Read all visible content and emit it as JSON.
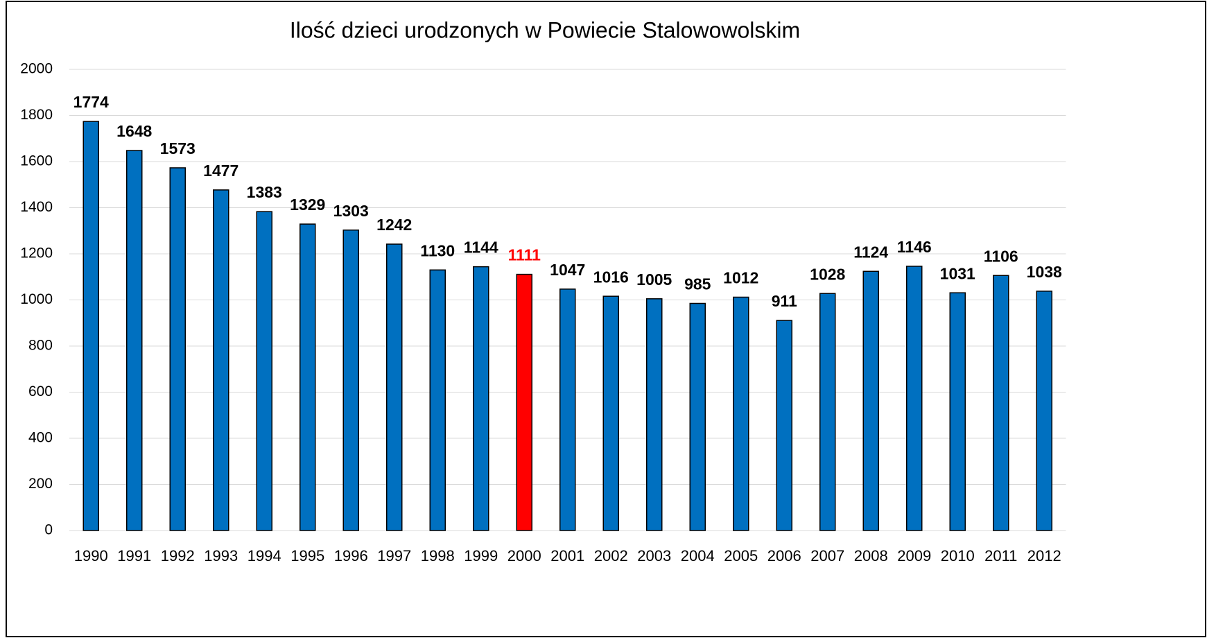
{
  "chart_data": {
    "type": "bar",
    "title": "Ilość dzieci urodzonych w Powiecie Stalowowolskim",
    "categories": [
      "1990",
      "1991",
      "1992",
      "1993",
      "1994",
      "1995",
      "1996",
      "1997",
      "1998",
      "1999",
      "2000",
      "2001",
      "2002",
      "2003",
      "2004",
      "2005",
      "2006",
      "2007",
      "2008",
      "2009",
      "2010",
      "2011",
      "2012"
    ],
    "values": [
      1774,
      1648,
      1573,
      1477,
      1383,
      1329,
      1303,
      1242,
      1130,
      1144,
      1111,
      1047,
      1016,
      1005,
      985,
      1012,
      911,
      1028,
      1124,
      1146,
      1031,
      1106,
      1038
    ],
    "colors": [
      "#0070c0",
      "#0070c0",
      "#0070c0",
      "#0070c0",
      "#0070c0",
      "#0070c0",
      "#0070c0",
      "#0070c0",
      "#0070c0",
      "#0070c0",
      "#ff0000",
      "#0070c0",
      "#0070c0",
      "#0070c0",
      "#0070c0",
      "#0070c0",
      "#0070c0",
      "#0070c0",
      "#0070c0",
      "#0070c0",
      "#0070c0",
      "#0070c0",
      "#0070c0"
    ],
    "label_colors": [
      "#000000",
      "#000000",
      "#000000",
      "#000000",
      "#000000",
      "#000000",
      "#000000",
      "#000000",
      "#000000",
      "#000000",
      "#ff0000",
      "#000000",
      "#000000",
      "#000000",
      "#000000",
      "#000000",
      "#000000",
      "#000000",
      "#000000",
      "#000000",
      "#000000",
      "#000000",
      "#000000"
    ],
    "ylim": [
      0,
      2000
    ],
    "yticks": [
      0,
      200,
      400,
      600,
      800,
      1000,
      1200,
      1400,
      1600,
      1800,
      2000
    ],
    "grid": true
  }
}
